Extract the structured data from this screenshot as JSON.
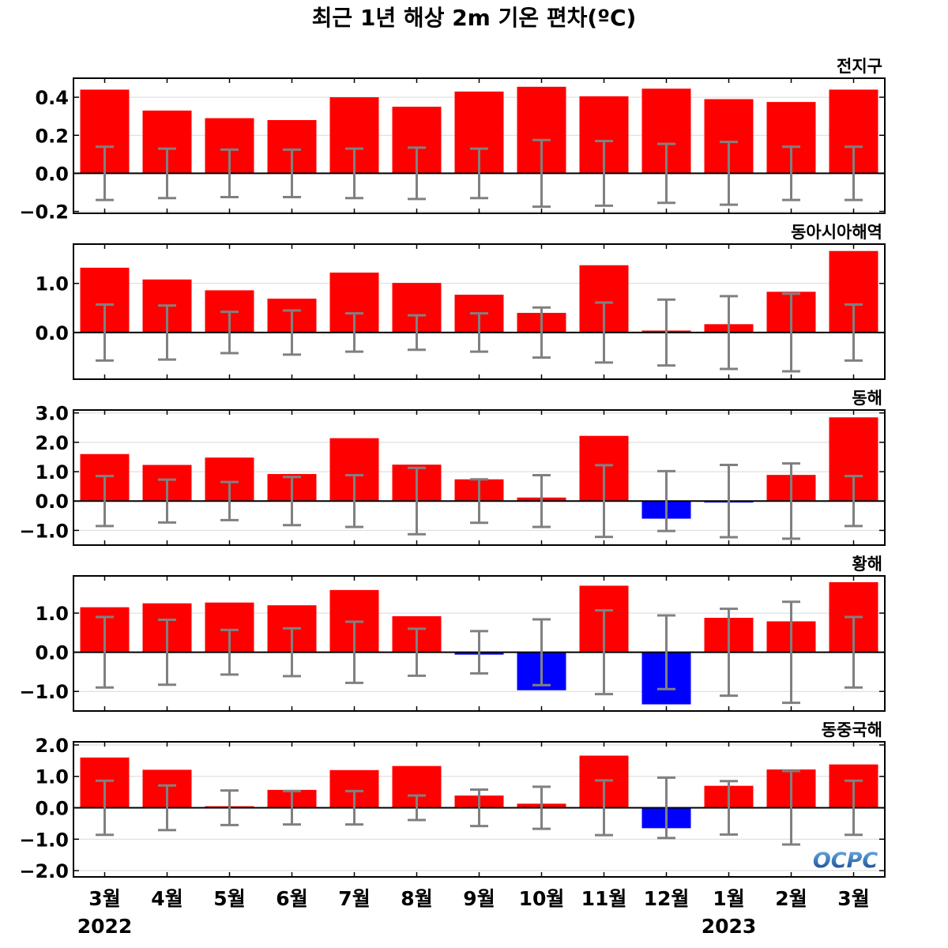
{
  "title": "최근 1년 해상 2m 기온 편차(ºC)",
  "logo": "OCPC",
  "colors": {
    "positive": "#ff0000",
    "negative": "#0000ff",
    "errorbar": "#808080",
    "grid": "#d9d9d9",
    "zero_line": "#000000"
  },
  "chart_data": [
    {
      "type": "bar",
      "title": "전지구",
      "categories": [
        "3월",
        "4월",
        "5월",
        "6월",
        "7월",
        "8월",
        "9월",
        "10월",
        "11월",
        "12월",
        "1월",
        "2월",
        "3월"
      ],
      "year_labels": [
        {
          "index": 0,
          "label": "2022"
        },
        {
          "index": 10,
          "label": "2023"
        }
      ],
      "ylim": [
        -0.21,
        0.5
      ],
      "yticks": [
        -0.2,
        0.0,
        0.2,
        0.4
      ],
      "ytick_labels": [
        "−0.2",
        "0.0",
        "0.2",
        "0.4"
      ],
      "values": [
        0.44,
        0.33,
        0.29,
        0.28,
        0.4,
        0.35,
        0.43,
        0.455,
        0.405,
        0.445,
        0.39,
        0.375,
        0.44
      ],
      "error_bounds": [
        0.14,
        0.13,
        0.125,
        0.125,
        0.13,
        0.135,
        0.13,
        0.175,
        0.17,
        0.155,
        0.165,
        0.14,
        0.14
      ]
    },
    {
      "type": "bar",
      "title": "동아시아해역",
      "categories": [
        "3월",
        "4월",
        "5월",
        "6월",
        "7월",
        "8월",
        "9월",
        "10월",
        "11월",
        "12월",
        "1월",
        "2월",
        "3월"
      ],
      "ylim": [
        -0.95,
        1.8
      ],
      "yticks": [
        0.0,
        1.0
      ],
      "ytick_labels": [
        "0.0",
        "1.0"
      ],
      "values": [
        1.32,
        1.08,
        0.86,
        0.69,
        1.22,
        1.01,
        0.77,
        0.4,
        1.37,
        0.04,
        0.17,
        0.83,
        1.66
      ],
      "error_bounds": [
        0.57,
        0.55,
        0.42,
        0.45,
        0.39,
        0.35,
        0.39,
        0.51,
        0.61,
        0.67,
        0.74,
        0.79,
        0.57
      ]
    },
    {
      "type": "bar",
      "title": "동해",
      "categories": [
        "3월",
        "4월",
        "5월",
        "6월",
        "7월",
        "8월",
        "9월",
        "10월",
        "11월",
        "12월",
        "1월",
        "2월",
        "3월"
      ],
      "ylim": [
        -1.5,
        3.1
      ],
      "yticks": [
        -1.0,
        0.0,
        1.0,
        2.0,
        3.0
      ],
      "ytick_labels": [
        "−1.0",
        "0.0",
        "1.0",
        "2.0",
        "3.0"
      ],
      "values": [
        1.6,
        1.23,
        1.48,
        0.92,
        2.14,
        1.24,
        0.74,
        0.12,
        2.22,
        -0.6,
        -0.05,
        0.89,
        2.85
      ],
      "error_bounds": [
        0.85,
        0.73,
        0.65,
        0.82,
        0.88,
        1.13,
        0.74,
        0.88,
        1.22,
        1.02,
        1.23,
        1.28,
        0.85
      ]
    },
    {
      "type": "bar",
      "title": "황해",
      "categories": [
        "3월",
        "4월",
        "5월",
        "6월",
        "7월",
        "8월",
        "9월",
        "10월",
        "11월",
        "12월",
        "1월",
        "2월",
        "3월"
      ],
      "ylim": [
        -1.5,
        1.95
      ],
      "yticks": [
        -1.0,
        0.0,
        1.0
      ],
      "ytick_labels": [
        "−1.0",
        "0.0",
        "1.0"
      ],
      "values": [
        1.15,
        1.25,
        1.27,
        1.2,
        1.59,
        0.92,
        -0.06,
        -0.97,
        1.7,
        -1.33,
        0.88,
        0.79,
        1.79
      ],
      "error_bounds": [
        0.9,
        0.83,
        0.57,
        0.61,
        0.78,
        0.6,
        0.54,
        0.84,
        1.07,
        0.94,
        1.11,
        1.29,
        0.9
      ]
    },
    {
      "type": "bar",
      "title": "동중국해",
      "categories": [
        "3월",
        "4월",
        "5월",
        "6월",
        "7월",
        "8월",
        "9월",
        "10월",
        "11월",
        "12월",
        "1월",
        "2월",
        "3월"
      ],
      "ylim": [
        -2.2,
        2.1
      ],
      "yticks": [
        -2.0,
        -1.0,
        0.0,
        1.0,
        2.0
      ],
      "ytick_labels": [
        "−2.0",
        "−1.0",
        "0.0",
        "1.0",
        "2.0"
      ],
      "values": [
        1.6,
        1.21,
        0.05,
        0.57,
        1.2,
        1.33,
        0.39,
        0.13,
        1.66,
        -0.65,
        0.7,
        1.22,
        1.38
      ],
      "error_bounds": [
        0.86,
        0.71,
        0.55,
        0.53,
        0.53,
        0.39,
        0.58,
        0.67,
        0.87,
        0.96,
        0.85,
        1.17,
        0.86
      ]
    }
  ]
}
